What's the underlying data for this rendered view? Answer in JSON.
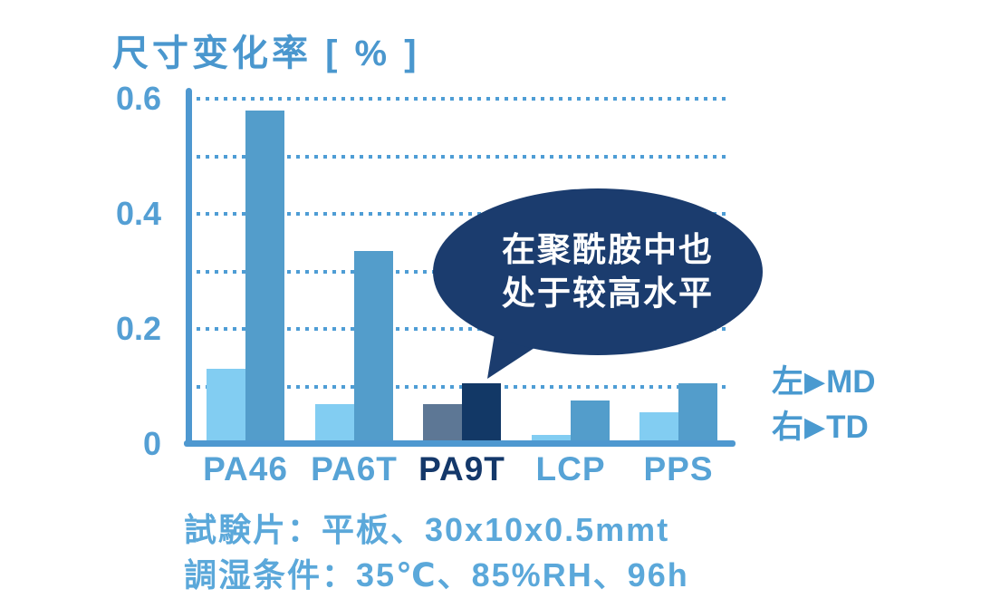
{
  "title": "尺寸变化率 [ % ]",
  "bubble": {
    "line1": "在聚酰胺中也",
    "line2": "处于较高水平"
  },
  "legend": {
    "items": [
      {
        "prefix": "左",
        "arrow": "▶",
        "label": "MD"
      },
      {
        "prefix": "右",
        "arrow": "▶",
        "label": "TD"
      }
    ]
  },
  "footnotes": {
    "line1": "試験片：平板、30x10x0.5mmt",
    "line2": "調湿条件：35℃、85%RH、96h"
  },
  "colors": {
    "title": "#4a97ce",
    "ytick": "#549fd4",
    "xlabel": "#57a3d6",
    "xlabel_highlight": "#14386a",
    "axis": "#4e98d0",
    "grid_dot": "#4e9dd5",
    "legend": "#4a9ad0",
    "footnote": "#5ba8da",
    "bubble_fill": "#1b3c6e",
    "bubble_text": "#ffffff"
  },
  "chart_data": {
    "type": "bar",
    "title": "尺寸变化率 [ % ]",
    "xlabel": "",
    "ylabel": "尺寸变化率 [%]",
    "categories": [
      "PA46",
      "PA6T",
      "PA9T",
      "LCP",
      "PPS"
    ],
    "series": [
      {
        "name": "MD",
        "values": [
          0.13,
          0.07,
          0.07,
          0.015,
          0.055
        ]
      },
      {
        "name": "TD",
        "values": [
          0.58,
          0.335,
          0.105,
          0.075,
          0.105
        ]
      }
    ],
    "ylim": [
      0,
      0.65
    ],
    "y_ticks": [
      {
        "label": "0",
        "value": 0
      },
      {
        "label": "0.2",
        "value": 0.2
      },
      {
        "label": "0.4",
        "value": 0.4
      },
      {
        "label": "0.6",
        "value": 0.6
      }
    ],
    "gridlines": [
      0.1,
      0.2,
      0.3,
      0.4,
      0.5,
      0.6
    ],
    "grid_style": "dotted",
    "legend_position": "right",
    "highlight_category": "PA9T",
    "annotation": "在聚酰胺中也 处于较高水平",
    "bar_colors": {
      "md": "#82cdf2",
      "td": "#539dcb",
      "md_highlight": "#5d7795",
      "td_highlight": "#123866"
    }
  }
}
